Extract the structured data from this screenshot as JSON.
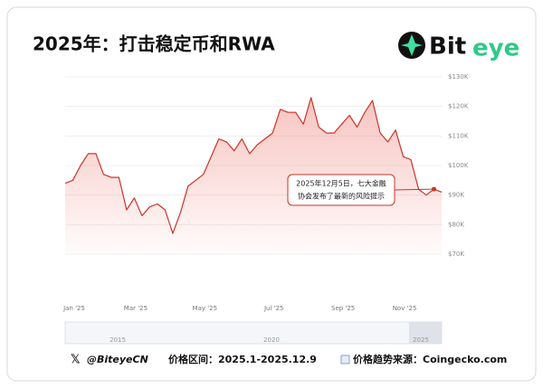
{
  "header": {
    "title": "2025年：打击稳定币和RWA",
    "logo": [
      "Bit",
      "eye"
    ]
  },
  "chart_data": {
    "type": "line",
    "color": "#cc3328",
    "categories": [
      "Jan '25",
      null,
      null,
      null,
      null,
      null,
      null,
      null,
      "Mar '25",
      null,
      null,
      null,
      null,
      null,
      null,
      null,
      null,
      "May '25",
      null,
      null,
      null,
      null,
      null,
      null,
      null,
      null,
      "Jul '25",
      null,
      null,
      null,
      null,
      null,
      null,
      null,
      null,
      "Sep '25",
      null,
      null,
      null,
      null,
      null,
      null,
      null,
      "Nov '25",
      null,
      null,
      null,
      null,
      null,
      null
    ],
    "values": [
      94,
      95,
      100,
      104,
      104,
      97,
      96,
      96,
      85,
      89,
      83,
      86,
      87,
      85,
      77,
      84,
      93,
      95,
      97,
      103,
      109,
      108,
      105,
      109,
      104,
      107,
      109,
      111,
      119,
      118,
      118,
      114,
      123,
      113,
      111,
      111,
      114,
      117,
      113,
      118,
      122,
      111,
      108,
      112,
      103,
      102,
      92,
      90,
      92,
      91
    ],
    "ylim": [
      70,
      130
    ],
    "yticks": [
      {
        "value": 70,
        "label": "$70K"
      },
      {
        "value": 80,
        "label": "$80K"
      },
      {
        "value": 90,
        "label": "$90K"
      },
      {
        "value": 100,
        "label": "$100K"
      },
      {
        "value": 110,
        "label": "$110K"
      },
      {
        "value": 120,
        "label": "$120K"
      },
      {
        "value": 130,
        "label": "$130K"
      }
    ],
    "grid": true,
    "annotation": {
      "index": 48,
      "lines": [
        "2025年12月5日，七大金融",
        "协会发布了最新的风险提示"
      ]
    }
  },
  "navigator": {
    "labels": [
      "2015",
      "2020",
      "2025"
    ]
  },
  "footer": {
    "handle": "@BiteyeCN",
    "range": "价格区间：2025.1-2025.12.9",
    "source": "价格趋势来源：Coingecko.com"
  }
}
